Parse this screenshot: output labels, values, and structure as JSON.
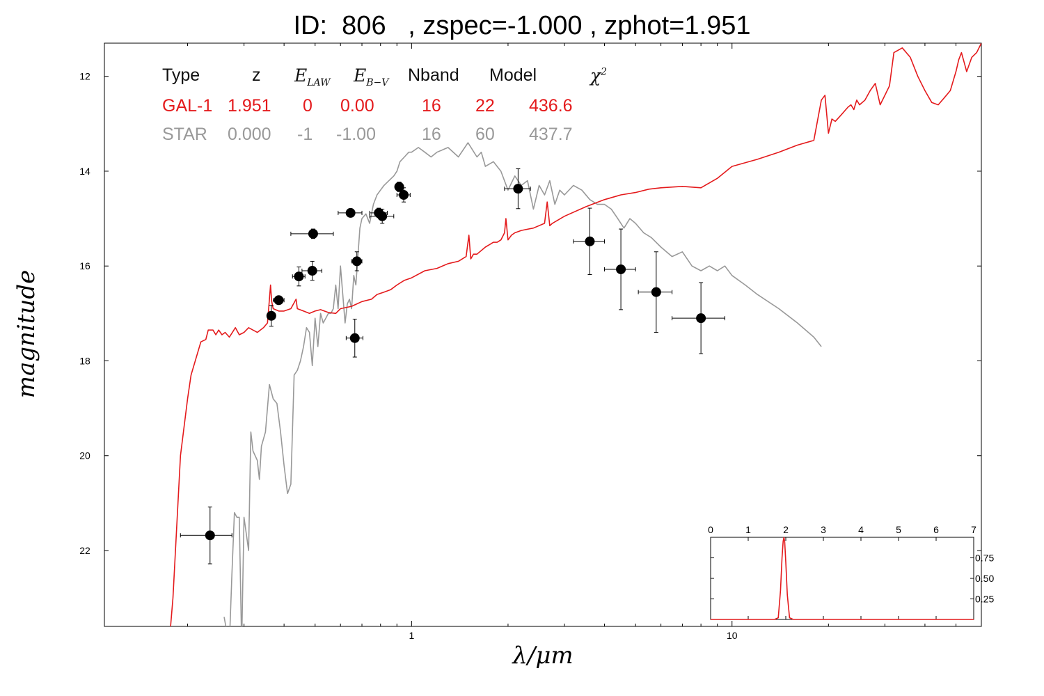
{
  "title": "ID:  806   , zspec=-1.000 , zphot=1.951",
  "legend": {
    "headers": {
      "type": "Type",
      "z": "z",
      "elaw": "E",
      "elaw_sub": "LAW",
      "ebv": "E",
      "ebv_sub": "B−V",
      "nband": "Nband",
      "model": "Model",
      "chi2": "χ",
      "chi2_sup": "2"
    },
    "rows": [
      {
        "type": "GAL-1",
        "z": "1.951",
        "elaw": "0",
        "ebv": "0.00",
        "nband": "16",
        "model": "22",
        "chi2": "436.6",
        "color": "#e41a1c"
      },
      {
        "type": "STAR",
        "z": "0.000",
        "elaw": "-1",
        "ebv": "-1.00",
        "nband": "16",
        "model": "60",
        "chi2": "437.7",
        "color": "#999999"
      }
    ]
  },
  "chart_data": [
    {
      "type": "scatter",
      "xlabel": "λ/μm",
      "ylabel": "magnitude",
      "xscale": "log",
      "xlim": [
        0.11,
        60
      ],
      "ylim": [
        23.6,
        11.3
      ],
      "x_ticks": [
        {
          "value": 1,
          "label": "1"
        },
        {
          "value": 10,
          "label": "10"
        }
      ],
      "y_ticks": [
        {
          "value": 12,
          "label": "12"
        },
        {
          "value": 14,
          "label": "14"
        },
        {
          "value": 16,
          "label": "16"
        },
        {
          "value": 18,
          "label": "18"
        },
        {
          "value": 20,
          "label": "20"
        },
        {
          "value": 22,
          "label": "22"
        }
      ],
      "points": [
        {
          "x": 0.235,
          "y": 21.68,
          "xerr": [
            0.19,
            0.275
          ],
          "yerr": 0.6
        },
        {
          "x": 0.365,
          "y": 17.05,
          "xerr": [
            0.355,
            0.375
          ],
          "yerr": 0.22
        },
        {
          "x": 0.385,
          "y": 16.72,
          "xerr": [
            0.37,
            0.4
          ],
          "yerr": 0.06
        },
        {
          "x": 0.445,
          "y": 16.22,
          "xerr": [
            0.425,
            0.465
          ],
          "yerr": 0.2
        },
        {
          "x": 0.49,
          "y": 16.1,
          "xerr": [
            0.455,
            0.525
          ],
          "yerr": 0.2
        },
        {
          "x": 0.493,
          "y": 15.32,
          "xerr": [
            0.42,
            0.57
          ],
          "yerr": 0.1
        },
        {
          "x": 0.645,
          "y": 14.88,
          "xerr": [
            0.59,
            0.7
          ],
          "yerr": 0.06
        },
        {
          "x": 0.665,
          "y": 17.52,
          "xerr": [
            0.625,
            0.705
          ],
          "yerr": 0.4
        },
        {
          "x": 0.675,
          "y": 15.9,
          "xerr": [
            0.65,
            0.7
          ],
          "yerr": 0.2
        },
        {
          "x": 0.79,
          "y": 14.88,
          "xerr": [
            0.74,
            0.84
          ],
          "yerr": 0.1
        },
        {
          "x": 0.81,
          "y": 14.95,
          "xerr": [
            0.74,
            0.88
          ],
          "yerr": 0.15
        },
        {
          "x": 0.915,
          "y": 14.33,
          "xerr": [
            0.89,
            0.94
          ],
          "yerr": 0.1
        },
        {
          "x": 0.945,
          "y": 14.5,
          "xerr": [
            0.9,
            0.99
          ],
          "yerr": 0.15
        },
        {
          "x": 2.15,
          "y": 14.37,
          "xerr": [
            1.95,
            2.35
          ],
          "yerr": 0.42
        },
        {
          "x": 3.6,
          "y": 15.48,
          "xerr": [
            3.2,
            4.0
          ],
          "yerr": 0.7
        },
        {
          "x": 4.5,
          "y": 16.07,
          "xerr": [
            4.0,
            5.0
          ],
          "yerr": 0.85
        },
        {
          "x": 5.8,
          "y": 16.55,
          "xerr": [
            5.1,
            6.5
          ],
          "yerr": 0.85
        },
        {
          "x": 8.0,
          "y": 17.1,
          "xerr": [
            6.5,
            9.5
          ],
          "yerr": 0.75
        }
      ],
      "series": [
        {
          "name": "GAL-1",
          "color": "#e41a1c",
          "x": [
            0.175,
            0.18,
            0.185,
            0.19,
            0.2,
            0.205,
            0.22,
            0.228,
            0.232,
            0.24,
            0.245,
            0.25,
            0.256,
            0.262,
            0.27,
            0.282,
            0.29,
            0.3,
            0.31,
            0.33,
            0.345,
            0.355,
            0.36,
            0.363,
            0.366,
            0.37,
            0.385,
            0.4,
            0.42,
            0.436,
            0.44,
            0.46,
            0.48,
            0.5,
            0.52,
            0.55,
            0.58,
            0.6,
            0.65,
            0.7,
            0.75,
            0.78,
            0.82,
            0.86,
            0.9,
            0.95,
            1.0,
            1.1,
            1.2,
            1.3,
            1.4,
            1.48,
            1.51,
            1.53,
            1.56,
            1.6,
            1.7,
            1.75,
            1.8,
            1.85,
            1.9,
            1.95,
            1.97,
            2.0,
            2.05,
            2.1,
            2.2,
            2.4,
            2.6,
            2.65,
            2.7,
            2.75,
            3.0,
            3.5,
            4.0,
            4.5,
            5.0,
            5.5,
            6.0,
            7.0,
            8.0,
            9.0,
            10.0,
            12.0,
            14.0,
            16.0,
            18.0,
            19.0,
            19.5,
            20.0,
            20.5,
            21.0,
            22.0,
            23.0,
            23.5,
            24.0,
            24.5,
            25.0,
            26.0,
            27.0,
            28.0,
            29.0,
            30.0,
            31.0,
            32.0,
            34.0,
            36.0,
            38.0,
            40.0,
            42.0,
            44.0,
            46.0,
            48.0,
            50.0,
            51.0,
            52.0,
            53.0,
            54.0,
            56.0,
            58.0,
            60.0
          ],
          "y": [
            24.0,
            23.0,
            21.5,
            20.0,
            18.8,
            18.3,
            17.6,
            17.55,
            17.35,
            17.35,
            17.45,
            17.35,
            17.45,
            17.4,
            17.5,
            17.3,
            17.45,
            17.4,
            17.3,
            17.4,
            17.3,
            17.2,
            16.7,
            16.4,
            16.75,
            16.9,
            16.95,
            16.95,
            16.9,
            16.7,
            16.9,
            16.95,
            17.0,
            16.95,
            16.92,
            16.98,
            17.0,
            16.9,
            16.85,
            16.75,
            16.7,
            16.6,
            16.55,
            16.5,
            16.4,
            16.3,
            16.25,
            16.1,
            16.05,
            15.95,
            15.9,
            15.8,
            15.35,
            15.85,
            15.75,
            15.75,
            15.6,
            15.55,
            15.5,
            15.5,
            15.45,
            15.3,
            15.0,
            15.45,
            15.35,
            15.3,
            15.25,
            15.2,
            15.1,
            14.65,
            15.15,
            15.1,
            14.95,
            14.75,
            14.6,
            14.5,
            14.45,
            14.38,
            14.35,
            14.32,
            14.35,
            14.15,
            13.9,
            13.75,
            13.6,
            13.45,
            13.35,
            12.5,
            12.4,
            13.2,
            12.9,
            12.95,
            12.8,
            12.65,
            12.6,
            12.7,
            12.5,
            12.6,
            12.5,
            12.3,
            12.15,
            12.6,
            12.4,
            12.2,
            11.5,
            11.4,
            11.6,
            12.0,
            12.3,
            12.55,
            12.6,
            12.45,
            12.3,
            11.9,
            11.65,
            11.5,
            11.7,
            11.9,
            11.6,
            11.5,
            11.3
          ]
        },
        {
          "name": "STAR",
          "color": "#999999",
          "x": [
            0.26,
            0.27,
            0.275,
            0.28,
            0.285,
            0.29,
            0.295,
            0.3,
            0.31,
            0.315,
            0.32,
            0.33,
            0.335,
            0.34,
            0.35,
            0.36,
            0.37,
            0.38,
            0.39,
            0.4,
            0.41,
            0.42,
            0.43,
            0.44,
            0.45,
            0.46,
            0.47,
            0.48,
            0.49,
            0.5,
            0.51,
            0.52,
            0.53,
            0.54,
            0.55,
            0.56,
            0.57,
            0.58,
            0.59,
            0.6,
            0.62,
            0.63,
            0.64,
            0.65,
            0.66,
            0.67,
            0.68,
            0.69,
            0.7,
            0.72,
            0.74,
            0.76,
            0.78,
            0.8,
            0.82,
            0.85,
            0.88,
            0.9,
            0.92,
            0.95,
            0.98,
            1.0,
            1.05,
            1.1,
            1.15,
            1.2,
            1.3,
            1.4,
            1.5,
            1.6,
            1.65,
            1.7,
            1.8,
            1.9,
            2.0,
            2.1,
            2.2,
            2.3,
            2.4,
            2.5,
            2.6,
            2.7,
            2.8,
            2.9,
            3.0,
            3.2,
            3.4,
            3.6,
            3.8,
            4.0,
            4.2,
            4.4,
            4.6,
            4.8,
            5.0,
            5.3,
            5.6,
            6.0,
            6.5,
            7.0,
            7.5,
            8.0,
            8.5,
            9.0,
            9.5,
            10.0,
            11.0,
            12.0,
            14.0,
            16.0,
            18.0,
            19.0
          ],
          "y": [
            23.4,
            24.0,
            22.5,
            21.2,
            21.3,
            21.3,
            24.0,
            21.3,
            22.0,
            19.5,
            19.9,
            20.1,
            20.5,
            19.8,
            19.5,
            18.5,
            18.8,
            18.9,
            19.5,
            20.2,
            20.8,
            20.6,
            18.3,
            18.2,
            18.0,
            17.7,
            17.3,
            17.4,
            18.1,
            17.1,
            17.7,
            17.0,
            17.2,
            17.1,
            17.0,
            17.0,
            16.9,
            16.4,
            16.9,
            16.0,
            17.2,
            16.8,
            16.7,
            16.9,
            16.2,
            16.4,
            15.8,
            15.2,
            15.0,
            14.9,
            15.1,
            14.7,
            14.5,
            14.4,
            14.3,
            14.2,
            14.1,
            14.0,
            13.8,
            13.7,
            13.6,
            13.6,
            13.5,
            13.6,
            13.7,
            13.6,
            13.5,
            13.7,
            13.4,
            13.7,
            13.6,
            13.9,
            13.8,
            14.0,
            14.4,
            14.1,
            14.3,
            14.2,
            14.8,
            14.3,
            14.5,
            14.2,
            14.7,
            14.4,
            14.5,
            14.3,
            14.4,
            14.6,
            14.7,
            14.7,
            14.8,
            15.0,
            15.2,
            15.0,
            15.1,
            15.3,
            15.4,
            15.6,
            15.8,
            15.7,
            16.0,
            16.1,
            16.0,
            16.1,
            16.0,
            16.2,
            16.4,
            16.6,
            16.9,
            17.2,
            17.5,
            17.7
          ]
        }
      ]
    },
    {
      "type": "line",
      "xlim": [
        0,
        7
      ],
      "ylim": [
        0,
        1.0
      ],
      "x_ticks": [
        0,
        1,
        2,
        3,
        4,
        5,
        6,
        7
      ],
      "y_ticks": [
        0.25,
        0.5,
        0.75
      ],
      "series": [
        {
          "name": "",
          "color": "#e41a1c",
          "x": [
            0,
            1.7,
            1.8,
            1.86,
            1.9,
            1.93,
            1.95,
            1.97,
            2.0,
            2.04,
            2.1,
            2.2,
            7
          ],
          "y": [
            0,
            0,
            0.02,
            0.35,
            0.75,
            0.95,
            1.0,
            0.95,
            0.7,
            0.3,
            0.02,
            0,
            0
          ]
        }
      ]
    }
  ]
}
